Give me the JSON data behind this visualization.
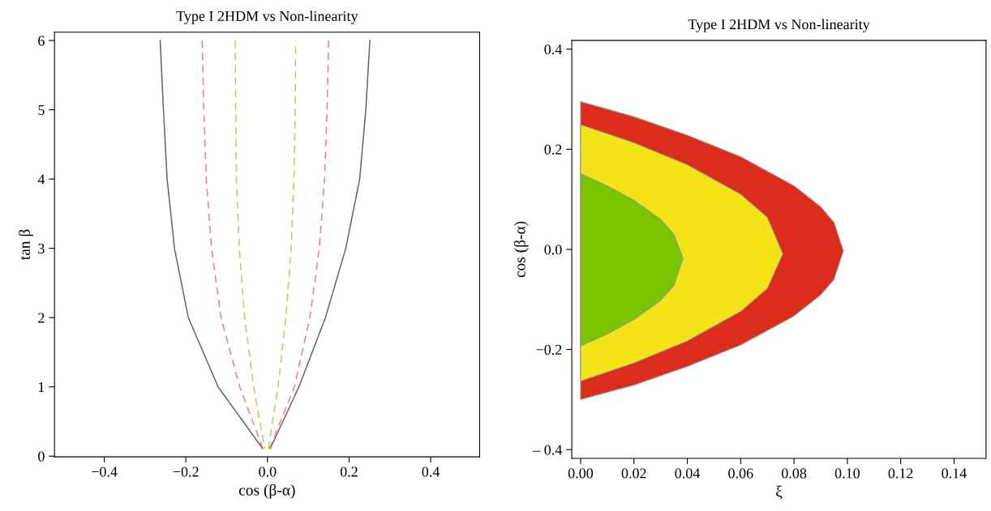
{
  "chart_data": [
    {
      "type": "line",
      "title": "Type I 2HDM vs Non-linearity",
      "xlabel": "cos (β-α)",
      "ylabel": "tan β",
      "xlim": [
        -0.522,
        0.52
      ],
      "ylim": [
        -0.01,
        6.12
      ],
      "xticks": [
        {
          "value": -0.4,
          "label": "−0.4"
        },
        {
          "value": -0.2,
          "label": "−0.2"
        },
        {
          "value": 0,
          "label": "0.0"
        },
        {
          "value": 0.2,
          "label": "0.2"
        },
        {
          "value": 0.4,
          "label": "0.4"
        }
      ],
      "yticks": [
        0,
        1,
        2,
        3,
        4,
        5,
        6
      ],
      "series": [
        {
          "color": "#666666",
          "line_style": "solid",
          "x": [
            -0.263,
            -0.255,
            -0.246,
            -0.228,
            -0.194,
            -0.121,
            -0.012
          ],
          "values": [
            6,
            5,
            4,
            3,
            2,
            1,
            0.11
          ]
        },
        {
          "color": "#666666",
          "line_style": "solid",
          "x": [
            0.007,
            0.077,
            0.142,
            0.192,
            0.226,
            0.241,
            0.251
          ],
          "values": [
            0.11,
            1,
            2,
            3,
            4,
            5,
            6
          ]
        },
        {
          "color": "#f47c7c",
          "line_style": "dashed",
          "x": [
            -0.16,
            -0.156,
            -0.15,
            -0.137,
            -0.114,
            -0.068,
            -0.011
          ],
          "values": [
            6,
            5,
            4,
            3,
            2,
            1,
            0.11
          ]
        },
        {
          "color": "#f47c7c",
          "line_style": "dashed",
          "x": [
            0.005,
            0.066,
            0.104,
            0.127,
            0.14,
            0.146,
            0.15
          ],
          "values": [
            0.11,
            1,
            2,
            3,
            4,
            5,
            6
          ]
        },
        {
          "color": "#a8d84a",
          "line_style": "dashed",
          "x": [
            -0.079,
            -0.078,
            -0.076,
            -0.069,
            -0.056,
            -0.034,
            -0.007
          ],
          "values": [
            6,
            5,
            4,
            3,
            2,
            1,
            0.11
          ]
        },
        {
          "color": "#a8d84a",
          "line_style": "dashed",
          "x": [
            0.002,
            0.026,
            0.045,
            0.058,
            0.065,
            0.068,
            0.069
          ],
          "values": [
            0.11,
            1,
            2,
            3,
            4,
            5,
            6
          ]
        }
      ]
    },
    {
      "type": "area",
      "orientation": "horizontal",
      "title": "Type I 2HDM vs Non-linearity",
      "xlabel": "ξ",
      "ylabel": "cos (β-α)",
      "xlim": [
        -0.0033,
        0.152
      ],
      "ylim": [
        -0.4175,
        0.4175
      ],
      "xticks": [
        {
          "value": 0,
          "label": "0.00"
        },
        {
          "value": 0.02,
          "label": "0.02"
        },
        {
          "value": 0.04,
          "label": "0.04"
        },
        {
          "value": 0.06,
          "label": "0.06"
        },
        {
          "value": 0.08,
          "label": "0.08"
        },
        {
          "value": 0.1,
          "label": "0.10"
        },
        {
          "value": 0.12,
          "label": "0.12"
        },
        {
          "value": 0.14,
          "label": "0.14"
        }
      ],
      "yticks": [
        {
          "value": -0.4,
          "label": "– 0.4"
        },
        {
          "value": -0.2,
          "label": "−0.2"
        },
        {
          "value": 0,
          "label": "0.0"
        },
        {
          "value": 0.2,
          "label": "0.2"
        },
        {
          "value": 0.4,
          "label": "0.4"
        }
      ],
      "series": [
        {
          "color": "#dc2d1c",
          "x": [
            -0.3,
            -0.271,
            -0.234,
            -0.191,
            -0.133,
            -0.091,
            -0.06,
            -0.003,
            0.054,
            0.085,
            0.127,
            0.185,
            0.228,
            0.265,
            0.295
          ],
          "values": [
            0,
            0.02,
            0.04,
            0.06,
            0.08,
            0.09,
            0.095,
            0.0985,
            0.095,
            0.09,
            0.08,
            0.06,
            0.04,
            0.02,
            0
          ]
        },
        {
          "color": "#f4e316",
          "x": [
            -0.263,
            -0.227,
            -0.183,
            -0.124,
            -0.078,
            -0.009,
            0.064,
            0.11,
            0.169,
            0.213,
            0.249
          ],
          "values": [
            0,
            0.02,
            0.04,
            0.06,
            0.07,
            0.0758,
            0.07,
            0.06,
            0.04,
            0.02,
            0
          ]
        },
        {
          "color": "#78c500",
          "x": [
            -0.193,
            -0.169,
            -0.14,
            -0.102,
            -0.072,
            -0.018,
            0.03,
            0.06,
            0.098,
            0.127,
            0.151
          ],
          "values": [
            0,
            0.01,
            0.02,
            0.03,
            0.035,
            0.0384,
            0.035,
            0.03,
            0.02,
            0.01,
            0
          ]
        }
      ]
    }
  ]
}
